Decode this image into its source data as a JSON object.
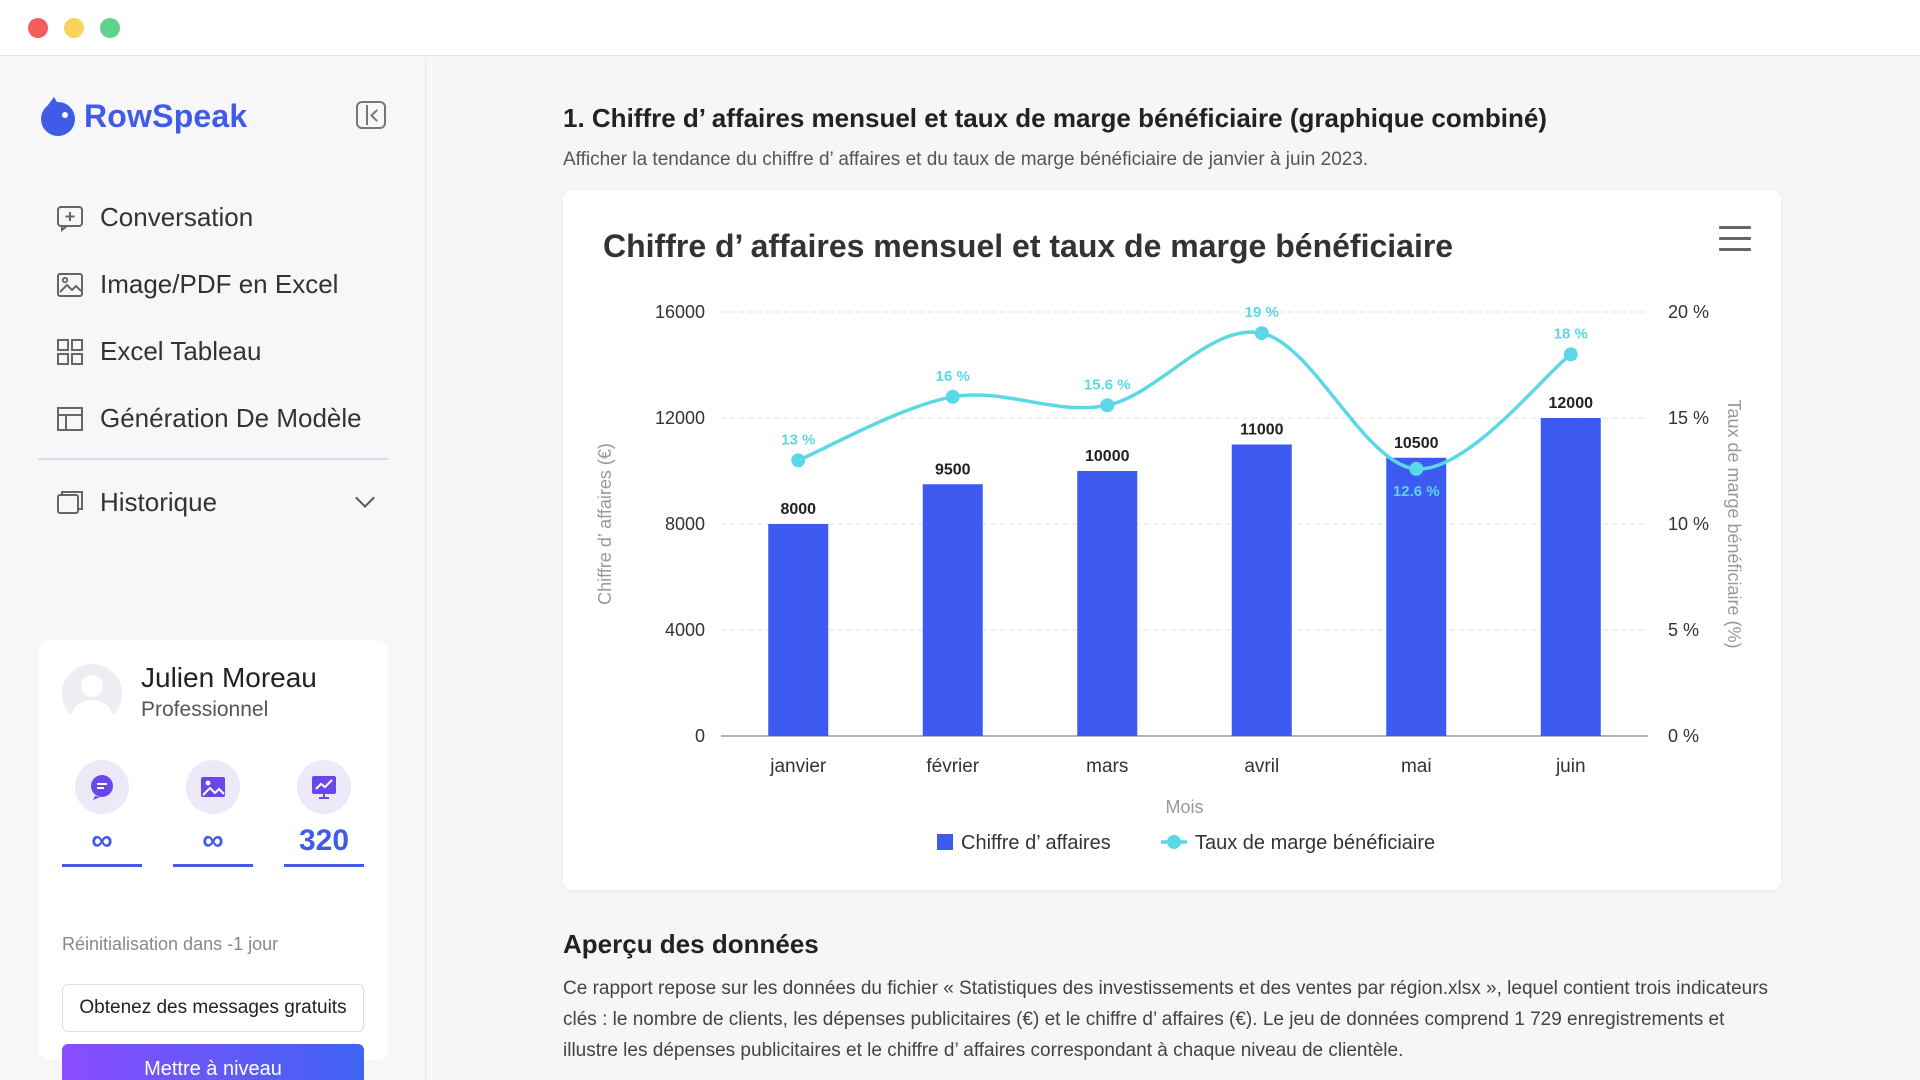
{
  "app": {
    "name": "RowSpeak"
  },
  "sidebar": {
    "items": [
      {
        "label": "Conversation",
        "icon": "chat-plus-icon"
      },
      {
        "label": "Image/PDF en Excel",
        "icon": "image-convert-icon"
      },
      {
        "label": "Excel Tableau",
        "icon": "dashboard-icon"
      },
      {
        "label": "Génération De Modèle",
        "icon": "template-icon"
      }
    ],
    "history_label": "Historique"
  },
  "user": {
    "name": "Julien Moreau",
    "plan": "Professionnel",
    "quotas": [
      {
        "icon": "chat-bubble-icon",
        "value": "∞"
      },
      {
        "icon": "image-icon",
        "value": "∞"
      },
      {
        "icon": "chart-icon",
        "value": "320"
      }
    ],
    "reset_text": "Réinitialisation dans -1 jour",
    "free_messages_label": "Obtenez des messages gratuits",
    "upgrade_label": "Mettre à niveau"
  },
  "main": {
    "section_title": "1. Chiffre d’ affaires mensuel et taux de marge bénéficiaire (graphique combiné)",
    "section_subtitle": "Afficher la tendance du chiffre d’ affaires et du taux de marge bénéficiaire de janvier à juin 2023.",
    "overview_title": "Aperçu des données",
    "overview_text": "Ce rapport repose sur les données du fichier « Statistiques des investissements et des ventes par région.xlsx », lequel contient trois indicateurs clés : le nombre de clients, les dépenses publicitaires (€) et le chiffre d’ affaires (€). Le jeu de données comprend 1 729 enregistrements et illustre les dépenses publicitaires et le chiffre d’ affaires correspondant à chaque niveau de clientèle."
  },
  "colors": {
    "accent": "#3f5be8",
    "bar": "#3d5af1",
    "line": "#5ad8e6"
  },
  "chart_data": {
    "type": "bar",
    "title": "Chiffre d’ affaires mensuel et taux de marge bénéficiaire",
    "categories": [
      "janvier",
      "février",
      "mars",
      "avril",
      "mai",
      "juin"
    ],
    "xlabel": "Mois",
    "ylabel": "Chiffre d’ affaires (€)",
    "y2label": "Taux de marge bénéficiaire (%)",
    "ylim": [
      0,
      16000
    ],
    "yticks": [
      "0",
      "4000",
      "8000",
      "12000",
      "16000"
    ],
    "y2lim": [
      0,
      20
    ],
    "y2ticks": [
      "0 %",
      "5 %",
      "10 %",
      "15 %",
      "20 %"
    ],
    "series": [
      {
        "name": "Chiffre d’ affaires",
        "type": "bar",
        "axis": "left",
        "values": [
          8000,
          9500,
          10000,
          11000,
          10500,
          12000
        ],
        "labels": [
          "8000",
          "9500",
          "10000",
          "11000",
          "10500",
          "12000"
        ]
      },
      {
        "name": "Taux de marge bénéficiaire",
        "type": "line",
        "axis": "right",
        "smooth": true,
        "values": [
          13,
          16,
          15.6,
          19,
          12.6,
          18
        ],
        "labels": [
          "13 %",
          "16 %",
          "15.6 %",
          "19 %",
          "12.6 %",
          "18 %"
        ]
      }
    ],
    "grid": true,
    "legend": "bottom-center"
  }
}
